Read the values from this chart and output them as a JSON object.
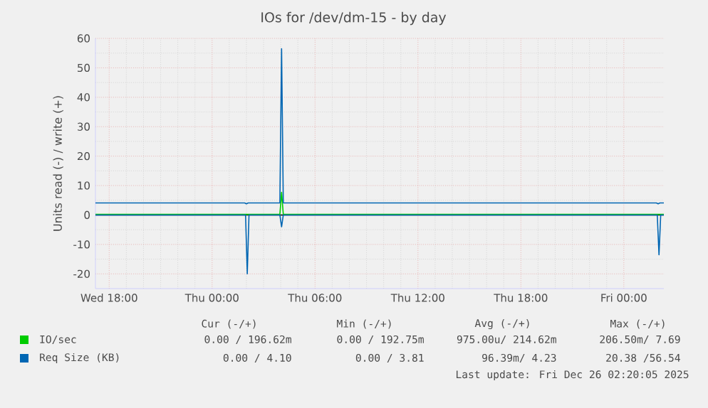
{
  "chart_data": {
    "type": "line",
    "title": "IOs for /dev/dm-15 - by day",
    "ylabel": "Units read (-) / write (+)",
    "series": [
      {
        "name": "IO/sec",
        "color": "#00cc00",
        "x": [
          "2025-12-24T17:12",
          "2025-12-25T03:57",
          "2025-12-25T04:03",
          "2025-12-25T04:09",
          "2025-12-26T02:20"
        ],
        "values": [
          0.2,
          0.2,
          7.7,
          0.2,
          0.2
        ]
      },
      {
        "name": "Req Size (KB)",
        "color": "#0066b3",
        "x": [
          "2025-12-24T17:12",
          "2025-12-25T01:54",
          "2025-12-25T02:00",
          "2025-12-25T02:06",
          "2025-12-25T03:57",
          "2025-12-25T04:03",
          "2025-12-25T04:09",
          "2025-12-26T01:54",
          "2025-12-26T02:00",
          "2025-12-26T02:06",
          "2025-12-26T02:20"
        ],
        "values": [
          4.1,
          4.1,
          3.8,
          4.1,
          4.1,
          56.5,
          4.1,
          4.1,
          3.8,
          4.1,
          4.1
        ]
      },
      {
        "color": "#0066b3",
        "x": [
          "2025-12-24T17:12",
          "2025-12-25T01:57",
          "2025-12-25T02:03",
          "2025-12-25T02:09",
          "2025-12-25T03:57",
          "2025-12-25T04:03",
          "2025-12-25T04:09",
          "2025-12-26T01:57",
          "2025-12-26T02:03",
          "2025-12-26T02:09",
          "2025-12-26T02:20"
        ],
        "values": [
          0,
          0,
          -20,
          0,
          0,
          -4,
          0,
          0,
          -13.5,
          0,
          0
        ]
      }
    ],
    "xlim": [
      "2025-12-24T17:12",
      "2025-12-26T02:20"
    ],
    "ylim": [
      -25,
      60
    ],
    "xticks": [
      {
        "value": "2025-12-24T18:00",
        "label": "Wed 18:00"
      },
      {
        "value": "2025-12-25T00:00",
        "label": "Thu 00:00"
      },
      {
        "value": "2025-12-25T06:00",
        "label": "Thu 06:00"
      },
      {
        "value": "2025-12-25T12:00",
        "label": "Thu 12:00"
      },
      {
        "value": "2025-12-25T18:00",
        "label": "Thu 18:00"
      },
      {
        "value": "2025-12-26T00:00",
        "label": "Fri 00:00"
      }
    ],
    "yticks": [
      -20,
      -10,
      0,
      10,
      20,
      30,
      40,
      50,
      60
    ],
    "ref_lines": [
      {
        "axis": "y",
        "value": 0,
        "color": "#000000"
      }
    ],
    "grid": true,
    "legend": "bottom",
    "marker": "none",
    "line_style": "solid",
    "annotations": [
      "Cur (-/+)",
      "Min (-/+)",
      "Avg (-/+)",
      "Max (-/+)",
      "0.00 / 196.62m",
      "0.00 / 192.75m",
      "975.00u/ 214.62m",
      "206.50m/ 7.69",
      "0.00 / 4.10",
      "0.00 / 3.81",
      "96.39m/ 4.23",
      "20.38 /56.54",
      "Last update: Fri Dec 26 02:20:05 2025"
    ]
  }
}
